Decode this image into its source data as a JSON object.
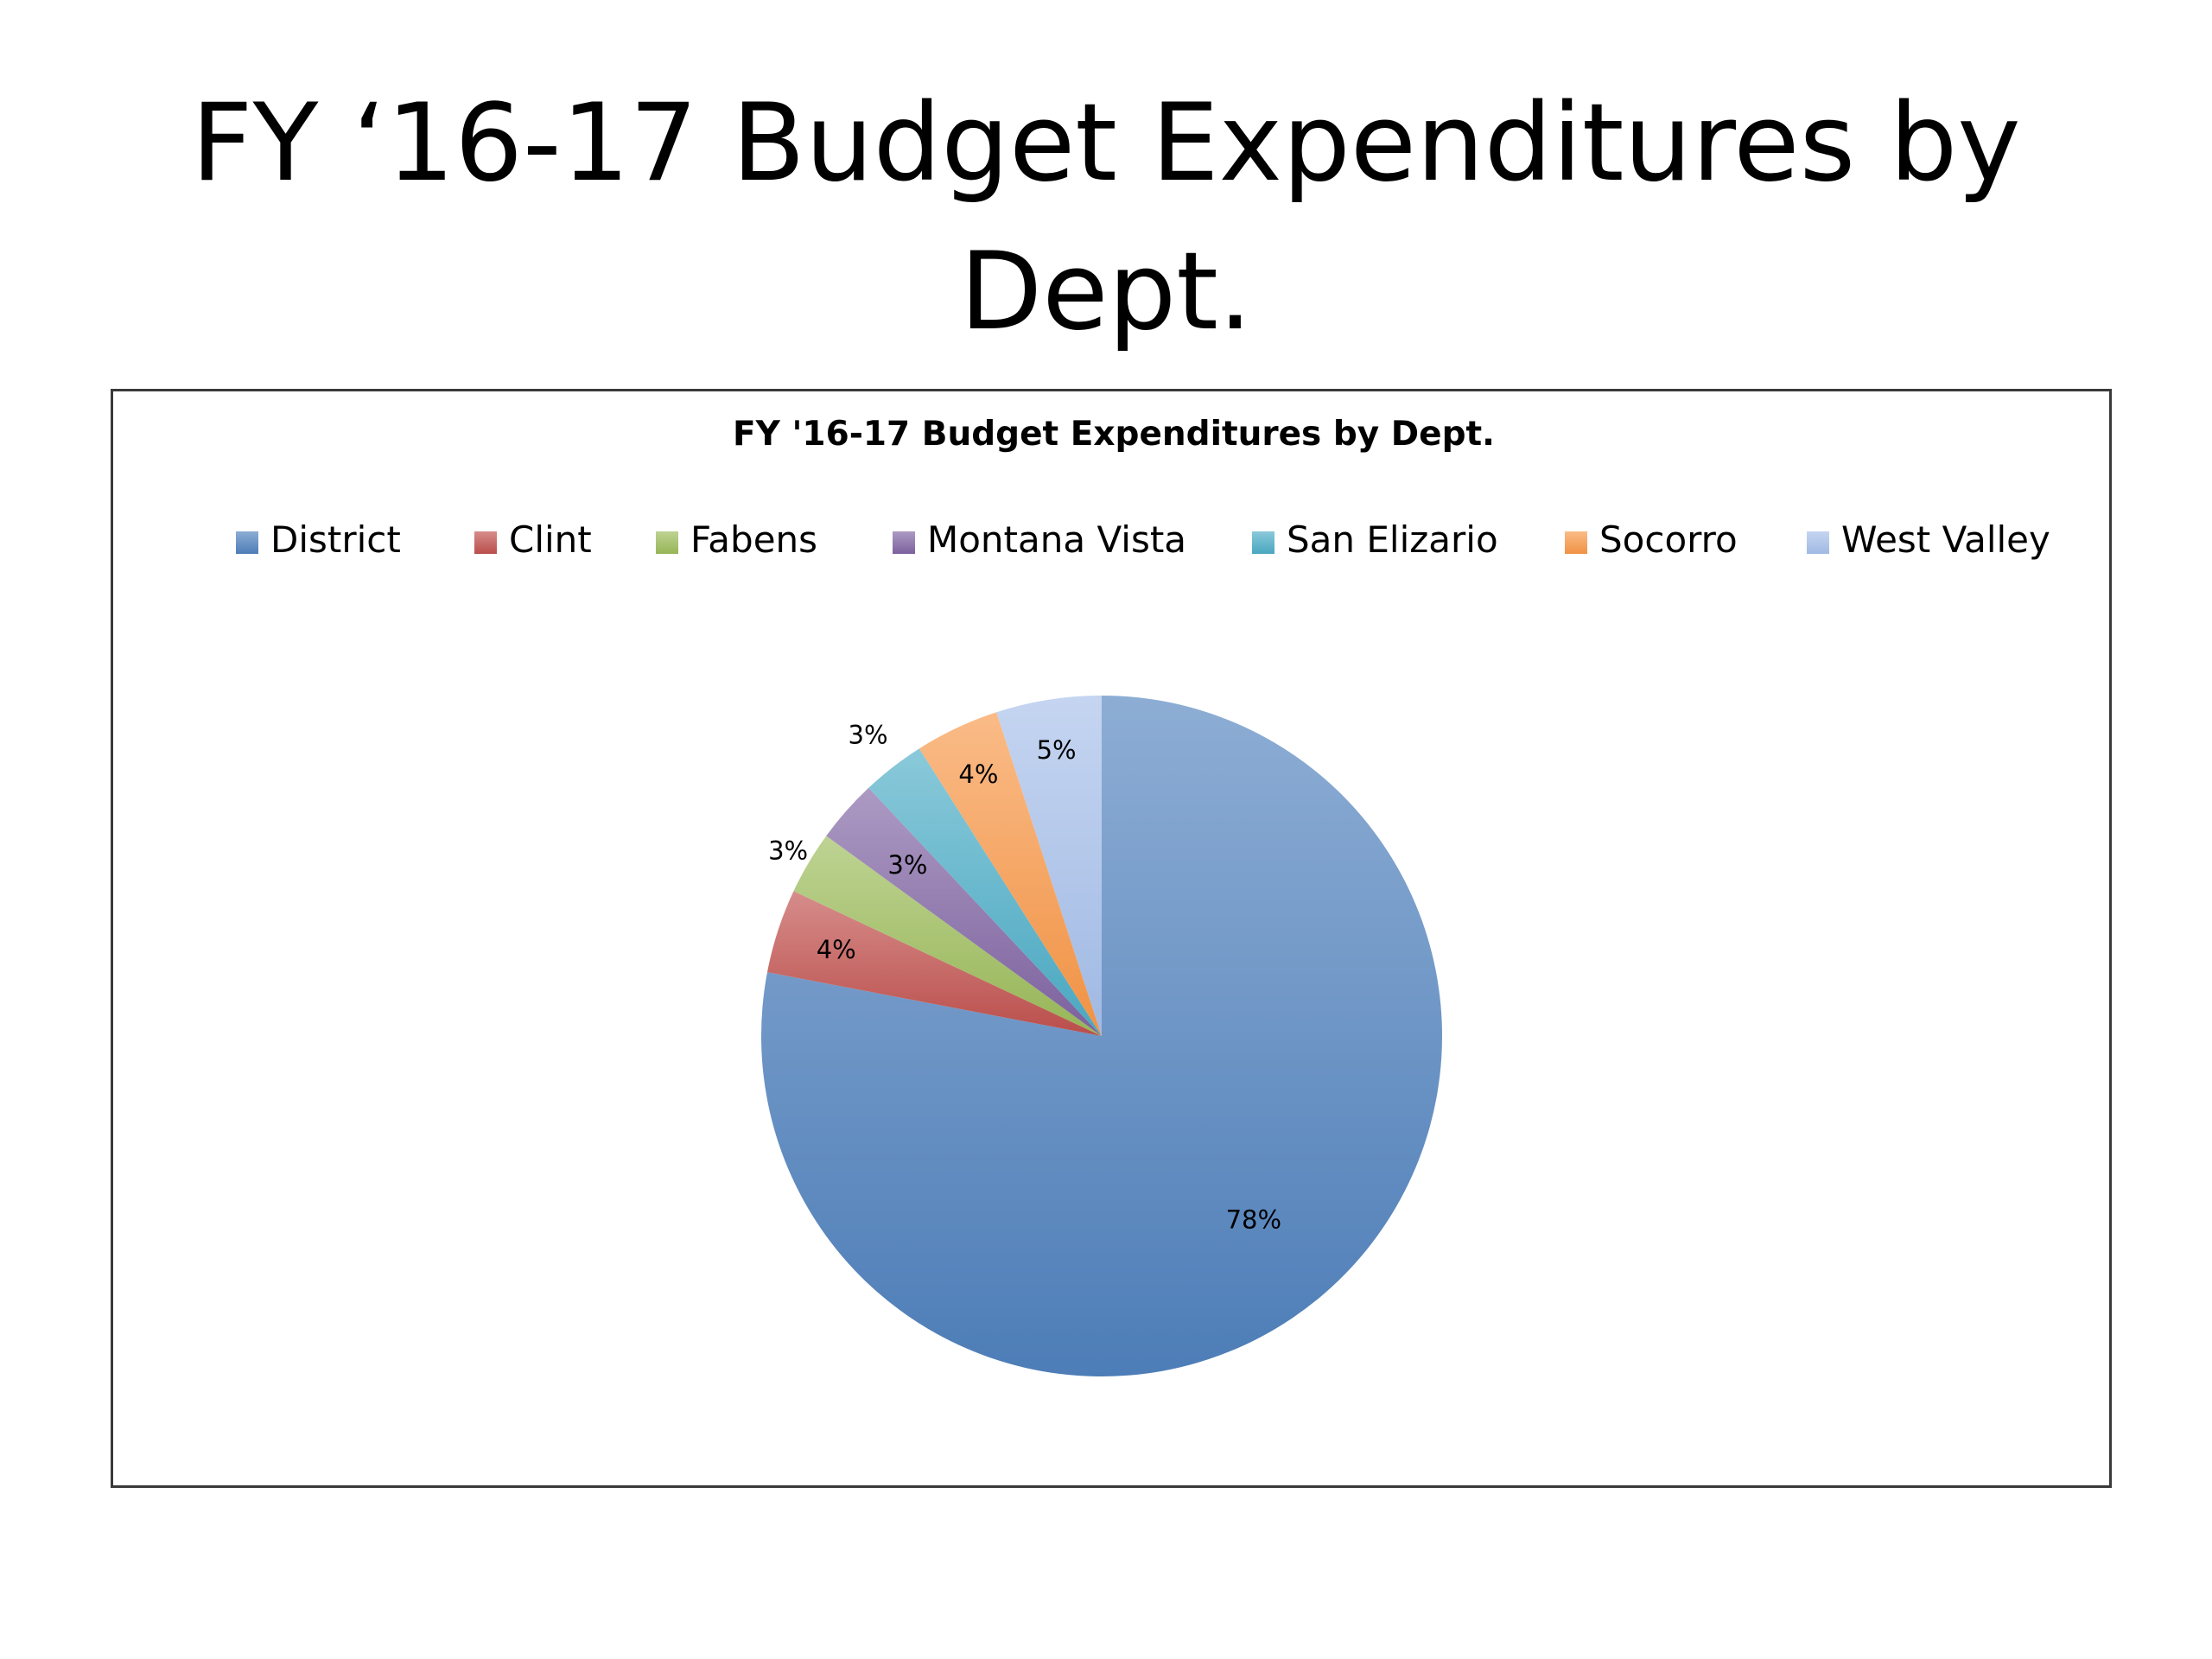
{
  "slide": {
    "title": "FY ‘16-17 Budget Expenditures by Dept."
  },
  "chart_data": {
    "type": "pie",
    "title": "FY '16-17 Budget Expenditures by Dept.",
    "legend_position": "top",
    "categories": [
      "District",
      "Clint",
      "Fabens",
      "Montana Vista",
      "San Elizario",
      "Socorro",
      "West Valley"
    ],
    "values": [
      78,
      4,
      3,
      3,
      3,
      4,
      5
    ],
    "data_labels": [
      "78%",
      "4%",
      "3%",
      "3%",
      "3%",
      "4%",
      "5%"
    ],
    "colors": [
      "#4F81BD",
      "#C0504D",
      "#9BBB59",
      "#8064A2",
      "#4BACC6",
      "#F79646",
      "#A5BFEA"
    ],
    "start_angle": "12 o'clock",
    "direction": "clockwise"
  }
}
